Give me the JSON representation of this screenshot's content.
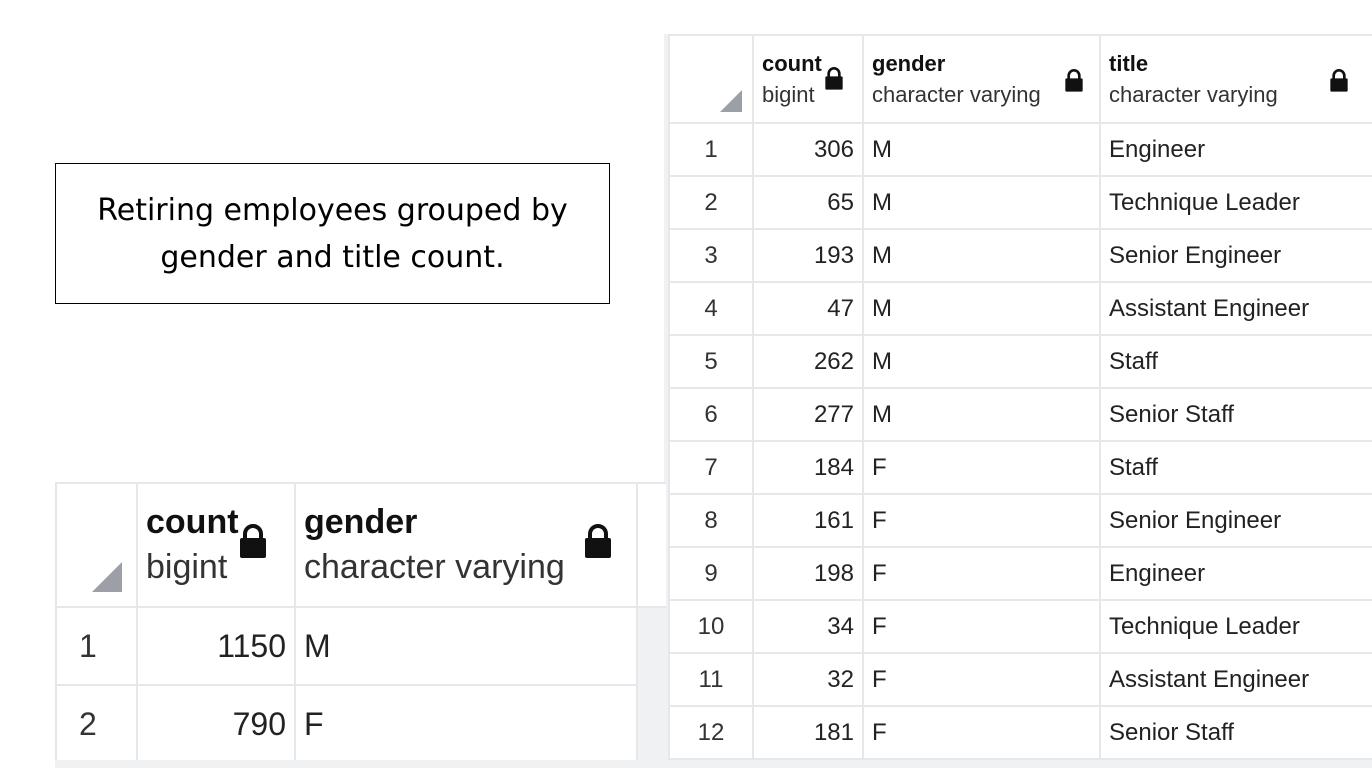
{
  "caption": "Retiring employees grouped by gender and title count.",
  "small_table": {
    "columns": [
      {
        "name": "count",
        "type": "bigint"
      },
      {
        "name": "gender",
        "type": "character varying"
      }
    ],
    "rows": [
      {
        "n": "1",
        "count": "1150",
        "gender": "M"
      },
      {
        "n": "2",
        "count": "790",
        "gender": "F"
      }
    ]
  },
  "big_table": {
    "columns": [
      {
        "name": "count",
        "type": "bigint"
      },
      {
        "name": "gender",
        "type": "character varying"
      },
      {
        "name": "title",
        "type": "character varying"
      }
    ],
    "rows": [
      {
        "n": "1",
        "count": "306",
        "gender": "M",
        "title": "Engineer"
      },
      {
        "n": "2",
        "count": "65",
        "gender": "M",
        "title": "Technique Leader"
      },
      {
        "n": "3",
        "count": "193",
        "gender": "M",
        "title": "Senior Engineer"
      },
      {
        "n": "4",
        "count": "47",
        "gender": "M",
        "title": "Assistant Engineer"
      },
      {
        "n": "5",
        "count": "262",
        "gender": "M",
        "title": "Staff"
      },
      {
        "n": "6",
        "count": "277",
        "gender": "M",
        "title": "Senior Staff"
      },
      {
        "n": "7",
        "count": "184",
        "gender": "F",
        "title": "Staff"
      },
      {
        "n": "8",
        "count": "161",
        "gender": "F",
        "title": "Senior Engineer"
      },
      {
        "n": "9",
        "count": "198",
        "gender": "F",
        "title": "Engineer"
      },
      {
        "n": "10",
        "count": "34",
        "gender": "F",
        "title": "Technique Leader"
      },
      {
        "n": "11",
        "count": "32",
        "gender": "F",
        "title": "Assistant Engineer"
      },
      {
        "n": "12",
        "count": "181",
        "gender": "F",
        "title": "Senior Staff"
      }
    ]
  },
  "icons": {
    "lock": "lock-icon",
    "corner": "select-all-triangle-icon"
  }
}
